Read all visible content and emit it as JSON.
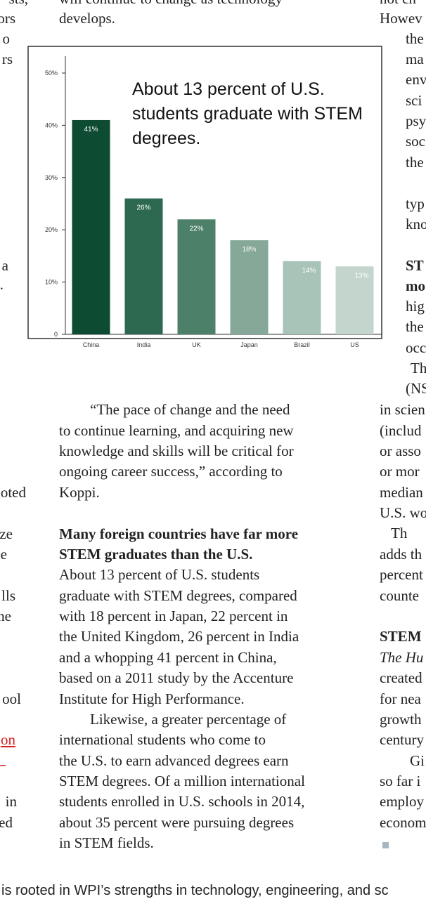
{
  "left_fragments": [
    "sts,",
    "ors",
    "o",
    "rs",
    "a",
    ".",
    "oted",
    "ze",
    "e",
    "lls",
    "he",
    "ool",
    "on",
    "in",
    "ed"
  ],
  "center_lines": [
    "will continue to change as technology",
    "develops.",
    "“The pace of change and the need",
    "to continue learning, and acquiring new",
    "knowledge and skills will be critical for",
    "ongoing career success,” according to",
    "Koppi.",
    "Many foreign countries have far more",
    "STEM graduates than the U.S.",
    "About 13 percent of U.S. students",
    "graduate with STEM degrees, compared",
    "with 18 percent in Japan, 22 percent in",
    "the United Kingdom, 26 percent in India",
    "and a whopping 41 percent in China,",
    "based on a 2011 study by the Accenture",
    "Institute for High Performance.",
    "Likewise, a greater percentage of",
    "international students who come to",
    "the U.S. to earn advanced degrees earn",
    "STEM degrees. Of a million international",
    "students enrolled in U.S. schools in 2014,",
    "about 35 percent were pursuing degrees",
    "in STEM fields."
  ],
  "right_fragments": [
    "not ch",
    "Howev",
    "the",
    "ma",
    "env",
    "sci",
    "psy",
    "soc",
    "the",
    "typ",
    "kno",
    "ST",
    "mo",
    "hig",
    "the",
    "occ",
    "Th",
    "(NS",
    "in scien",
    "(includ",
    "or asso",
    "or mor",
    "median",
    "U.S. wo",
    "Th",
    "adds th",
    "percent",
    "counte",
    "STEM",
    "The Hu",
    "created",
    "for nea",
    "growth",
    "century",
    "Gi",
    "so far i",
    "employ",
    "econom"
  ],
  "footer": "is rooted in WPI’s strengths in technology, engineering, and sc",
  "chart_data": {
    "type": "bar",
    "annotation": "About 13 percent of U.S. students graduate with STEM degrees.",
    "categories": [
      "China",
      "India",
      "UK",
      "Japan",
      "Brazil",
      "US"
    ],
    "values": [
      41,
      26,
      22,
      18,
      14,
      13
    ],
    "value_labels": [
      "41%",
      "26%",
      "22%",
      "18%",
      "14%",
      "13%"
    ],
    "colors": [
      "#0d4b33",
      "#2d6850",
      "#4d8069",
      "#85a898",
      "#a8c3b7",
      "#c3d5cd"
    ],
    "ylim": [
      0,
      50
    ],
    "yticks": [
      0,
      {
        "value": 10,
        "label": "10%"
      },
      {
        "value": 20,
        "label": "20%"
      },
      {
        "value": 30,
        "label": "30%"
      },
      {
        "value": 40,
        "label": "40%"
      },
      {
        "value": 50,
        "label": "50%"
      }
    ]
  }
}
